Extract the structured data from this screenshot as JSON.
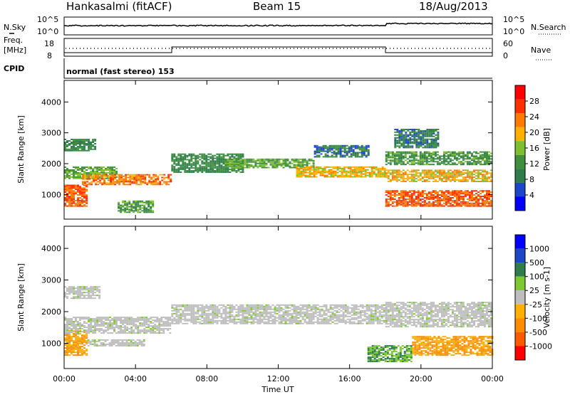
{
  "header": {
    "station": "Hankasalmi (fitACF)",
    "beam": "Beam 15",
    "date": "18/Aug/2013"
  },
  "strip": {
    "nsky_label": "N.Sky",
    "nsearch_label": "N.Search",
    "freq_label_1": "Freq.",
    "freq_label_2": "[MHz]",
    "nave_label": "Nave",
    "cpid_label": "CPID",
    "cpid_value": "normal (fast stereo) 153",
    "noise_ticks": [
      "10^5",
      "10^0"
    ],
    "noise_right_ticks": [
      "10^5",
      "10^0"
    ],
    "freq_ticks": [
      "18",
      "8"
    ],
    "nave_ticks": [
      "60",
      "0"
    ]
  },
  "colors": {
    "power_scale": [
      "#0000ff",
      "#1e46c8",
      "#2f7d4d",
      "#3f8f3f",
      "#7fbf2f",
      "#ffb000",
      "#ff7a00",
      "#ff3000",
      "#ff0000"
    ],
    "velocity_scale": [
      "#ff0000",
      "#ff5a00",
      "#ff8c00",
      "#ffb000",
      "#bebebe",
      "#7ec832",
      "#2f7d4d",
      "#1e46c8",
      "#0000ff"
    ],
    "ground_scatter": "#bebebe"
  },
  "chart_data": [
    {
      "type": "heatmap",
      "panel": "power",
      "ylabel": "Slant Range [km]",
      "yticks": [
        1000,
        2000,
        3000,
        4000
      ],
      "ylim": [
        200,
        4700
      ],
      "xlim_hours": [
        0,
        24
      ],
      "colorbar_label": "Power [dB]",
      "colorbar_ticks": [
        "28",
        "24",
        "20",
        "16",
        "12",
        "8",
        "4"
      ],
      "clim": [
        0,
        32
      ],
      "echo_bands": [
        {
          "t0": 0.0,
          "t1": 1.3,
          "r0": 600,
          "r1": 1300,
          "value": 26
        },
        {
          "t0": 0.0,
          "t1": 3.0,
          "r0": 1500,
          "r1": 1900,
          "value": 14
        },
        {
          "t0": 1.0,
          "t1": 6.0,
          "r0": 1300,
          "r1": 1650,
          "value": 24
        },
        {
          "t0": 0.0,
          "t1": 1.8,
          "r0": 2400,
          "r1": 2800,
          "value": 10
        },
        {
          "t0": 3.0,
          "t1": 5.0,
          "r0": 400,
          "r1": 800,
          "value": 12
        },
        {
          "t0": 6.0,
          "t1": 10.0,
          "r0": 1700,
          "r1": 2300,
          "value": 10
        },
        {
          "t0": 9.0,
          "t1": 14.0,
          "r0": 1850,
          "r1": 2150,
          "value": 14
        },
        {
          "t0": 13.0,
          "t1": 18.0,
          "r0": 1550,
          "r1": 1900,
          "value": 20
        },
        {
          "t0": 14.0,
          "t1": 17.0,
          "r0": 2200,
          "r1": 2600,
          "value": 8
        },
        {
          "t0": 18.0,
          "t1": 24.0,
          "r0": 600,
          "r1": 1100,
          "value": 26
        },
        {
          "t0": 18.0,
          "t1": 24.0,
          "r0": 1400,
          "r1": 1800,
          "value": 20
        },
        {
          "t0": 18.0,
          "t1": 24.0,
          "r0": 1950,
          "r1": 2400,
          "value": 12
        },
        {
          "t0": 18.5,
          "t1": 21.0,
          "r0": 2500,
          "r1": 3100,
          "value": 8
        }
      ]
    },
    {
      "type": "heatmap",
      "panel": "velocity",
      "ylabel": "Slant Range [km]",
      "yticks": [
        1000,
        2000,
        3000,
        4000
      ],
      "ylim": [
        200,
        4700
      ],
      "xlim_hours": [
        0,
        24
      ],
      "xticks": [
        "00:00",
        "04:00",
        "08:00",
        "12:00",
        "16:00",
        "20:00",
        "00:00"
      ],
      "xlabel": "Time UT",
      "colorbar_label": "Velocity [m s-1]",
      "colorbar_ticks": [
        "1000",
        "500",
        "100",
        "25",
        "-25",
        "-100",
        "-500",
        "-1000"
      ],
      "echo_bands": [
        {
          "t0": 0.0,
          "t1": 1.3,
          "r0": 600,
          "r1": 1400,
          "value": -100
        },
        {
          "t0": 1.3,
          "t1": 4.5,
          "r0": 900,
          "r1": 1100,
          "value": 0
        },
        {
          "t0": 0.0,
          "t1": 6.0,
          "r0": 1300,
          "r1": 1800,
          "value": 0
        },
        {
          "t0": 0.0,
          "t1": 2.0,
          "r0": 2400,
          "r1": 2800,
          "value": 0
        },
        {
          "t0": 6.0,
          "t1": 18.0,
          "r0": 1600,
          "r1": 2200,
          "value": 0
        },
        {
          "t0": 17.0,
          "t1": 19.5,
          "r0": 400,
          "r1": 900,
          "value": 100
        },
        {
          "t0": 19.5,
          "t1": 24.0,
          "r0": 600,
          "r1": 1200,
          "value": -100
        },
        {
          "t0": 18.0,
          "t1": 24.0,
          "r0": 1500,
          "r1": 2300,
          "value": 0
        }
      ]
    }
  ]
}
